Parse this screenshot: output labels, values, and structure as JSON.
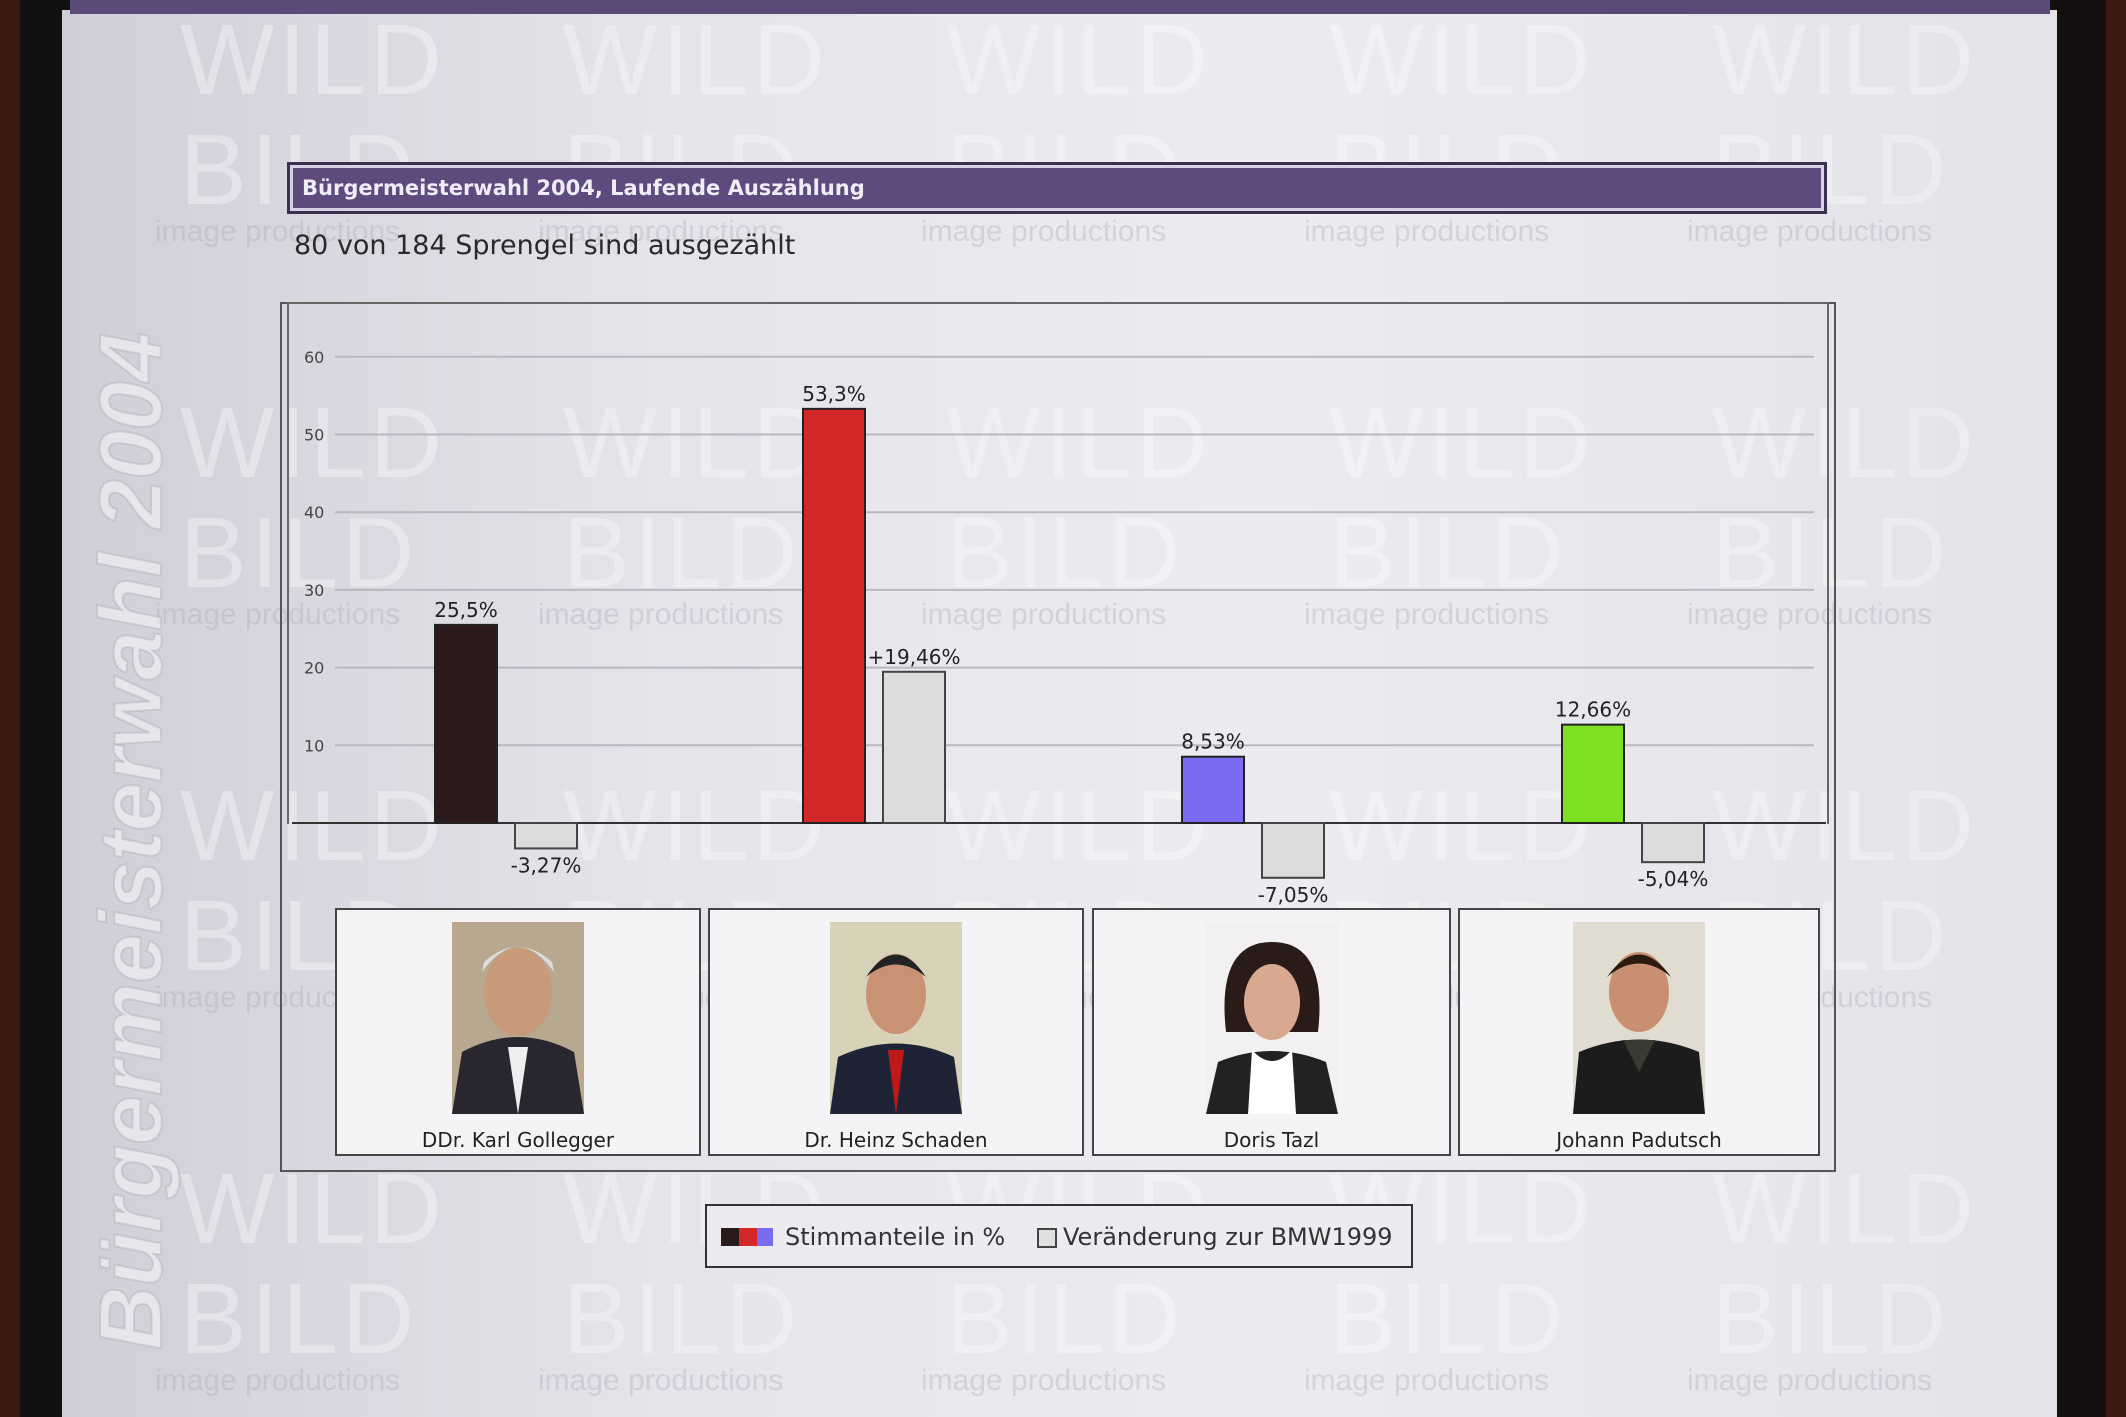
{
  "header": {
    "title": "Bürgermeisterwahl 2004, Laufende Auszählung",
    "subtitle": "80 von 184 Sprengel sind ausgezählt"
  },
  "watermark": {
    "vertical": "Bürgermeisterwahl 2004",
    "big1": "WILD",
    "big2": "BILD",
    "small": "image productions"
  },
  "chart_data": {
    "type": "bar",
    "categories": [
      "DDr. Karl Gollegger",
      "Dr. Heinz Schaden",
      "Doris Tazl",
      "Johann Padutsch"
    ],
    "series": [
      {
        "name": "Stimmanteile in %",
        "values": [
          25.5,
          53.3,
          8.53,
          12.66
        ],
        "labels": [
          "25,5%",
          "53,3%",
          "8,53%",
          "12,66%"
        ],
        "colors": [
          "#2a1a1c",
          "#d42828",
          "#7a6cf0",
          "#7ee022"
        ]
      },
      {
        "name": "Veränderung zur BMW1999",
        "values": [
          -3.27,
          19.46,
          -7.05,
          -5.04
        ],
        "labels": [
          "-3,27%",
          "+19,46%",
          "-7,05%",
          "-5,04%"
        ],
        "colors": [
          "#dcdcdc",
          "#dcdcdc",
          "#dcdcdc",
          "#dcdcdc"
        ]
      }
    ],
    "yticks": [
      "10",
      "20",
      "30",
      "40",
      "50",
      "60"
    ],
    "ylim": [
      -10,
      60
    ],
    "grid": true,
    "legend": "bottom-center"
  },
  "legend": {
    "item1": "Stimmanteile in %",
    "item2": "Veränderung zur BMW1999",
    "colors": [
      "#2a1a1c",
      "#d42828",
      "#7a6cf0"
    ]
  }
}
